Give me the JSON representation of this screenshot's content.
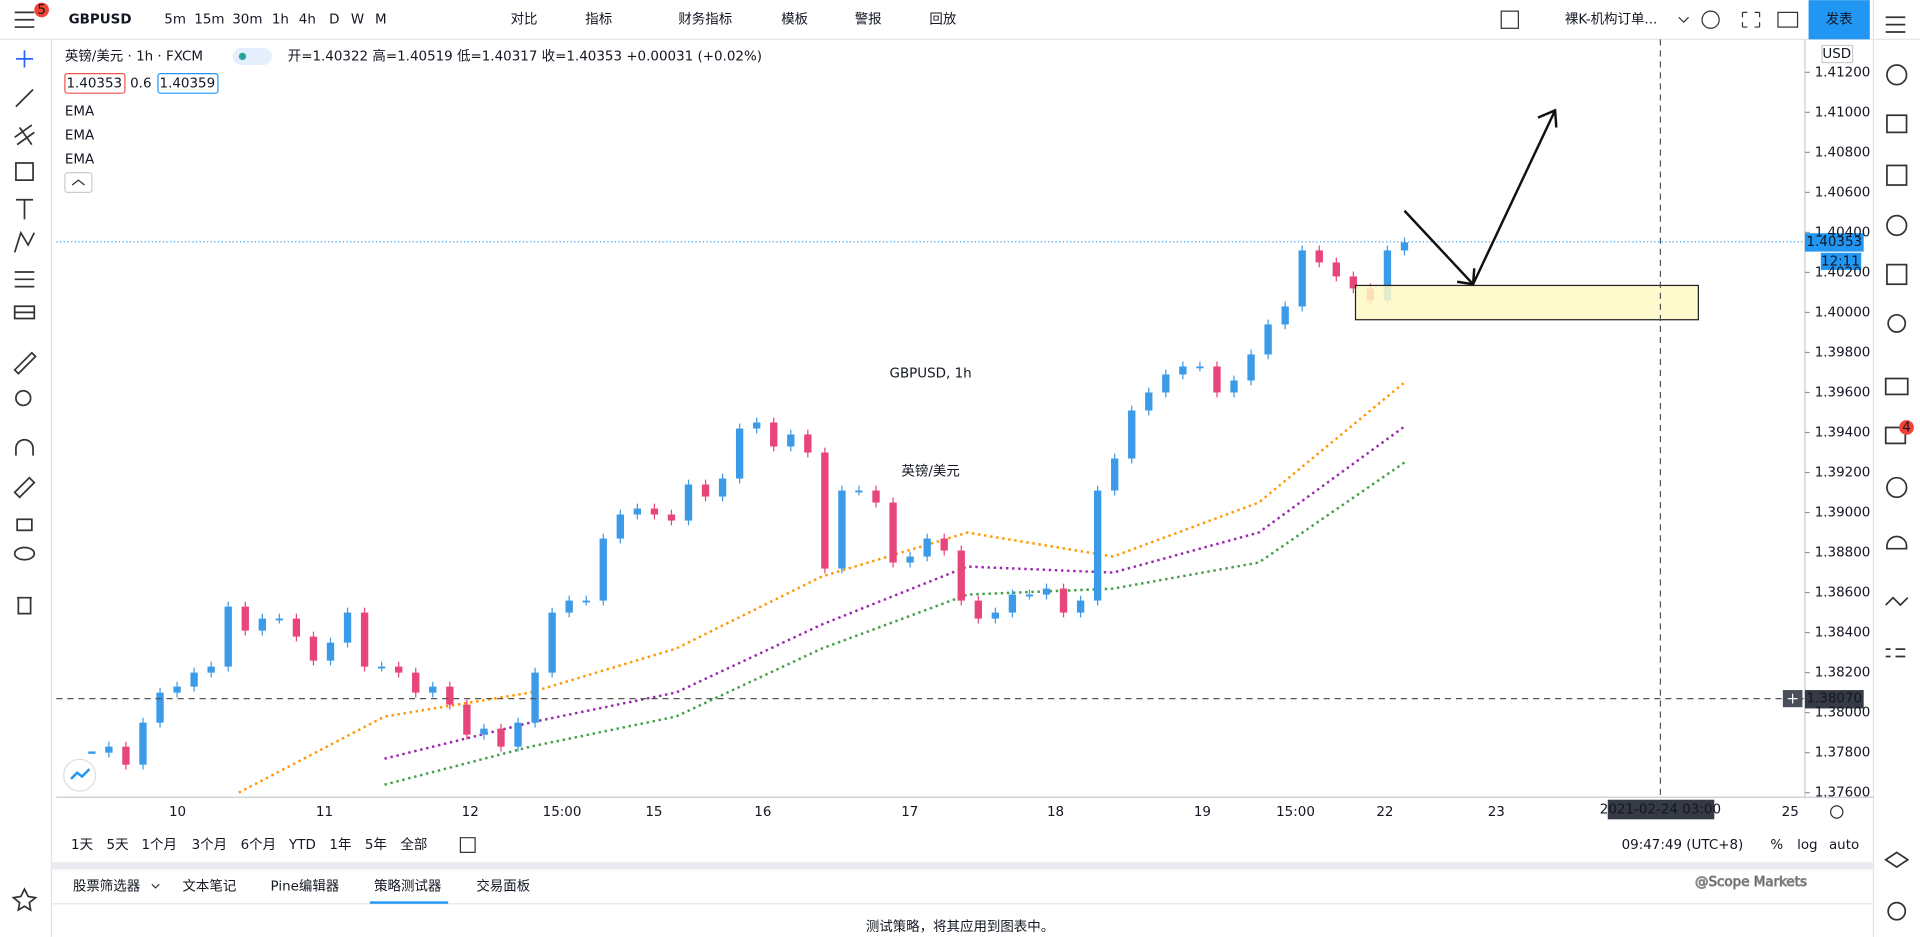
{
  "toolbar": {
    "symbol": "GBPUSD",
    "notifications": "5",
    "intervals": [
      "5m",
      "15m",
      "30m",
      "1h",
      "4h",
      "D",
      "W",
      "M"
    ],
    "buttons": [
      "对比",
      "指标",
      "财务指标",
      "模板",
      "警报",
      "回放"
    ],
    "layout_name": "裸K-机构订单...",
    "publish": "发表"
  },
  "legend": {
    "title": "英镑/美元 · 1h · FXCM",
    "ohlc": "开=1.40322 高=1.40519 低=1.40317 收=1.40353 +0.00031 (+0.02%)",
    "bid": "1.40353",
    "spread": "0.6",
    "ask": "1.40359",
    "indicators": [
      "EMA",
      "EMA",
      "EMA"
    ]
  },
  "watermark": {
    "symbol": "GBPUSD, 1h",
    "name": "英镑/美元"
  },
  "chart": {
    "currency": "USD",
    "ylim": [
      1.37577,
      1.41365
    ],
    "yticks": [
      {
        "value": 1.412,
        "label": "1.41200"
      },
      {
        "value": 1.41,
        "label": "1.41000"
      },
      {
        "value": 1.408,
        "label": "1.40800"
      },
      {
        "value": 1.406,
        "label": "1.40600"
      },
      {
        "value": 1.404,
        "label": "1.40400"
      },
      {
        "value": 1.402,
        "label": "1.40200"
      },
      {
        "value": 1.4,
        "label": "1.40000"
      },
      {
        "value": 1.398,
        "label": "1.39800"
      },
      {
        "value": 1.396,
        "label": "1.39600"
      },
      {
        "value": 1.394,
        "label": "1.39400"
      },
      {
        "value": 1.392,
        "label": "1.39200"
      },
      {
        "value": 1.39,
        "label": "1.39000"
      },
      {
        "value": 1.388,
        "label": "1.38800"
      },
      {
        "value": 1.386,
        "label": "1.38600"
      },
      {
        "value": 1.384,
        "label": "1.38400"
      },
      {
        "value": 1.382,
        "label": "1.38200"
      },
      {
        "value": 1.38,
        "label": "1.38000"
      },
      {
        "value": 1.378,
        "label": "1.37800"
      },
      {
        "value": 1.376,
        "label": "1.37600"
      }
    ],
    "x_labels": [
      "10",
      "11",
      "12",
      "15:00",
      "15",
      "16",
      "17",
      "18",
      "19",
      "15:00",
      "22",
      "23",
      "25"
    ],
    "closes": [
      1.378,
      1.3783,
      1.3774,
      1.3795,
      1.381,
      1.3813,
      1.382,
      1.3823,
      1.3853,
      1.3841,
      1.3847,
      1.3847,
      1.3838,
      1.3826,
      1.3835,
      1.385,
      1.3823,
      1.3823,
      1.382,
      1.381,
      1.3813,
      1.3804,
      1.3789,
      1.3792,
      1.3783,
      1.3795,
      1.382,
      1.385,
      1.3856,
      1.3856,
      1.3887,
      1.3899,
      1.3902,
      1.3899,
      1.3896,
      1.3914,
      1.3908,
      1.3917,
      1.3942,
      1.3945,
      1.3933,
      1.3939,
      1.393,
      1.3872,
      1.3911,
      1.3911,
      1.3905,
      1.3875,
      1.3878,
      1.3887,
      1.3881,
      1.3856,
      1.3847,
      1.385,
      1.3859,
      1.3859,
      1.3862,
      1.385,
      1.3856,
      1.3911,
      1.3927,
      1.3951,
      1.396,
      1.3969,
      1.3973,
      1.3973,
      1.396,
      1.3966,
      1.3979,
      1.3994,
      1.4003,
      1.4031,
      1.4025,
      1.4018,
      1.4012,
      1.4006,
      1.4031,
      1.4035
    ],
    "ema": [
      {
        "color": "#ff9800",
        "values": [
          1.376,
          1.3798,
          1.381,
          1.3832,
          1.3868,
          1.389,
          1.3878,
          1.3905,
          1.3965
        ]
      },
      {
        "color": "#9c27b0",
        "values": [
          null,
          1.3777,
          1.3795,
          1.381,
          1.3844,
          1.3873,
          1.387,
          1.389,
          1.3943
        ]
      },
      {
        "color": "#43a047",
        "values": [
          null,
          1.3764,
          1.3783,
          1.3798,
          1.3832,
          1.3859,
          1.3862,
          1.3875,
          1.3925
        ]
      }
    ],
    "last_price": {
      "value": 1.40353,
      "label": "1.40353"
    },
    "countdown": "12:11",
    "crosshair_price": {
      "value": 1.3807,
      "label": "1.38070"
    },
    "crosshair_time": "2021-02-24  03:00"
  },
  "ranges": [
    "1天",
    "5天",
    "1个月",
    "3个月",
    "6个月",
    "YTD",
    "1年",
    "5年",
    "全部"
  ],
  "clock": "09:47:49 (UTC+8)",
  "scale_options": [
    "%",
    "log",
    "auto"
  ],
  "bottom_tabs": [
    "股票筛选器",
    "文本笔记",
    "Pine编辑器",
    "策略测试器",
    "交易面板"
  ],
  "panel_message": "测试策略，将其应用到图表中。",
  "credit": "@Scope Markets",
  "sidebar_badge": "4"
}
